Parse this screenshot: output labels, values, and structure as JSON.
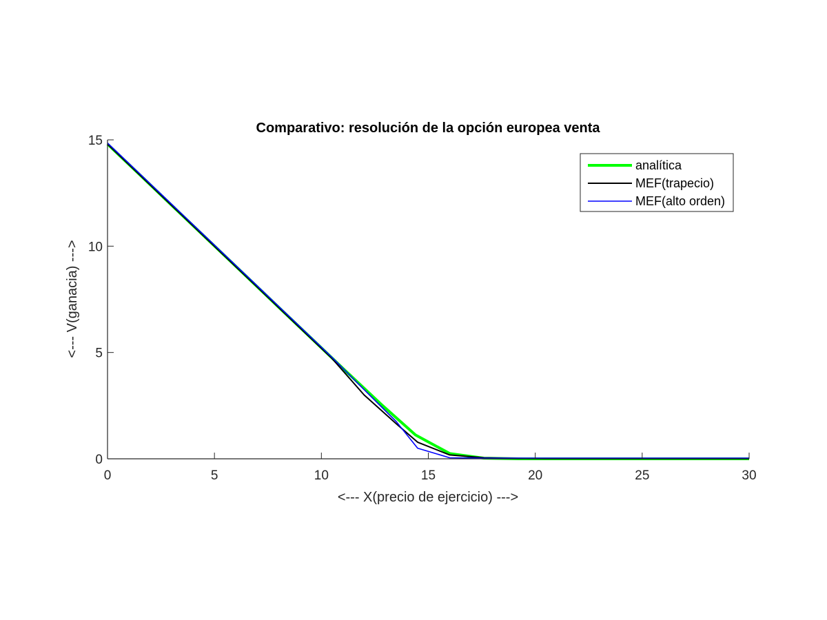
{
  "chart_data": {
    "type": "line",
    "title": "Comparativo: resolución de la opción europea venta",
    "xlabel": "<--- X(precio de ejercicio) --->",
    "ylabel": "<--- V(ganacia) --->",
    "xlim": [
      0,
      30
    ],
    "ylim": [
      0,
      15
    ],
    "xticks": [
      0,
      5,
      10,
      15,
      20,
      25,
      30
    ],
    "yticks": [
      0,
      5,
      10,
      15
    ],
    "grid": false,
    "legend_position": "top-right",
    "series": [
      {
        "name": "analítica",
        "color": "#00ff00",
        "x": [
          0,
          1.6,
          3.2,
          4.8,
          6.4,
          8,
          9.6,
          11.2,
          12.8,
          14.4,
          16,
          17.6,
          19.2,
          20.8,
          22.4,
          24,
          25.6,
          27.2,
          28.8,
          30
        ],
        "y": [
          14.8,
          13.27,
          11.73,
          10.2,
          8.67,
          7.13,
          5.6,
          4.07,
          2.56,
          1.12,
          0.25,
          0.03,
          0.0,
          0.0,
          0.0,
          0.0,
          0.0,
          0.0,
          0.0,
          0.0
        ]
      },
      {
        "name": "MEF(trapecio)",
        "color": "#000000",
        "x": [
          0,
          1.5,
          3,
          4.5,
          6,
          7.5,
          9,
          10.5,
          12,
          13.5,
          14.5,
          16,
          17.6,
          19.2,
          20.5,
          22,
          24,
          26,
          28,
          30
        ],
        "y": [
          14.8,
          13.36,
          11.92,
          10.48,
          9.04,
          7.6,
          6.16,
          4.72,
          3.0,
          1.65,
          0.78,
          0.18,
          0.05,
          0.02,
          0.01,
          0.01,
          0.01,
          0.01,
          0.01,
          0.01
        ]
      },
      {
        "name": "MEF(alto orden)",
        "color": "#0000ff",
        "x": [
          0,
          1.5,
          3,
          4.5,
          6,
          7.5,
          9,
          10.5,
          12,
          13.5,
          14.5,
          16,
          17.6,
          19.2,
          20.5,
          22,
          24,
          26,
          28,
          30
        ],
        "y": [
          14.85,
          13.41,
          11.97,
          10.53,
          9.09,
          7.65,
          6.21,
          4.77,
          3.25,
          1.75,
          0.5,
          0.05,
          0.03,
          0.03,
          0.03,
          0.03,
          0.03,
          0.03,
          0.03,
          0.03
        ]
      }
    ]
  }
}
